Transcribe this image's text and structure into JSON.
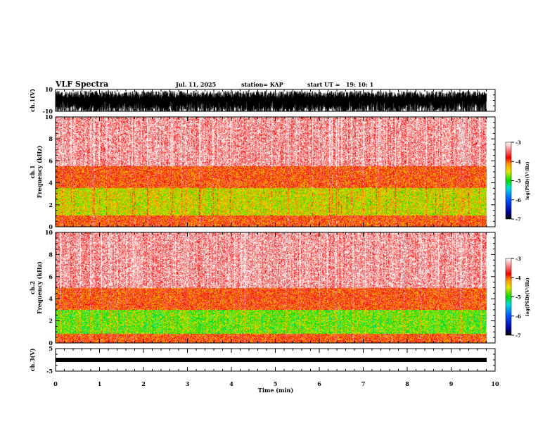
{
  "header": {
    "title": "VLF Spectra",
    "date": "Jul. 11, 2025",
    "station": "station= KAP",
    "start": "start UT =   19: 10: 1"
  },
  "chart_data": [
    {
      "type": "line",
      "name": "ch1-waveform",
      "ylabel": "ch.1(V)",
      "ylim": [
        -10,
        10
      ],
      "yticks": [
        "10",
        "-10"
      ],
      "xlim": [
        0,
        10
      ],
      "description_values": {
        "amplitude_range": [
          -10,
          10
        ]
      }
    },
    {
      "type": "heatmap",
      "name": "ch1-spectrogram",
      "ylabel": "ch.1\nFrequency (kHz)",
      "ylabel_lines": [
        "ch.1",
        "Frequency (kHz)"
      ],
      "ylim": [
        0,
        10
      ],
      "yticks": [
        "0",
        "2",
        "4",
        "6",
        "8",
        "10"
      ],
      "xlim": [
        0,
        10
      ],
      "data_end_min": 9.8,
      "bands": [
        {
          "from": 0,
          "to": 1,
          "level": -3.9
        },
        {
          "from": 1,
          "to": 3.5,
          "level": -4.5
        },
        {
          "from": 3.5,
          "to": 5.5,
          "level": -3.9
        },
        {
          "from": 5.5,
          "to": 10,
          "level": -3.3
        }
      ],
      "colorbar": {
        "label": "log(PSD)(V²/Hz)",
        "ticks": [
          "-3",
          "-4",
          "-5",
          "-6",
          "-7"
        ],
        "range": [
          -7,
          -3
        ]
      }
    },
    {
      "type": "heatmap",
      "name": "ch2-spectrogram",
      "ylabel": "ch.2\nFrequency (kHz)",
      "ylabel_lines": [
        "ch.2",
        "Frequency (kHz)"
      ],
      "ylim": [
        0,
        10
      ],
      "yticks": [
        "0",
        "2",
        "4",
        "6",
        "8",
        "10"
      ],
      "xlim": [
        0,
        10
      ],
      "data_end_min": 9.8,
      "bands": [
        {
          "from": 0,
          "to": 0.8,
          "level": -3.9
        },
        {
          "from": 0.8,
          "to": 3,
          "level": -4.8
        },
        {
          "from": 3,
          "to": 5,
          "level": -3.9
        },
        {
          "from": 5,
          "to": 10,
          "level": -3.3
        }
      ],
      "colorbar": {
        "label": "log(PSD)(V²/Hz)",
        "ticks": [
          "-3",
          "-4",
          "-5",
          "-6",
          "-7"
        ],
        "range": [
          -7,
          -3
        ]
      }
    },
    {
      "type": "line",
      "name": "ch3-waveform",
      "ylabel": "ch.3(V)",
      "ylim": [
        -5,
        5
      ],
      "yticks": [
        "5",
        "-5"
      ],
      "xlim": [
        0,
        10
      ],
      "description_values": {
        "level": 1
      }
    },
    {
      "type": "axis",
      "xlabel": "Time (min)",
      "xticks": [
        "0",
        "1",
        "2",
        "3",
        "4",
        "5",
        "6",
        "7",
        "8",
        "9",
        "10"
      ]
    }
  ]
}
